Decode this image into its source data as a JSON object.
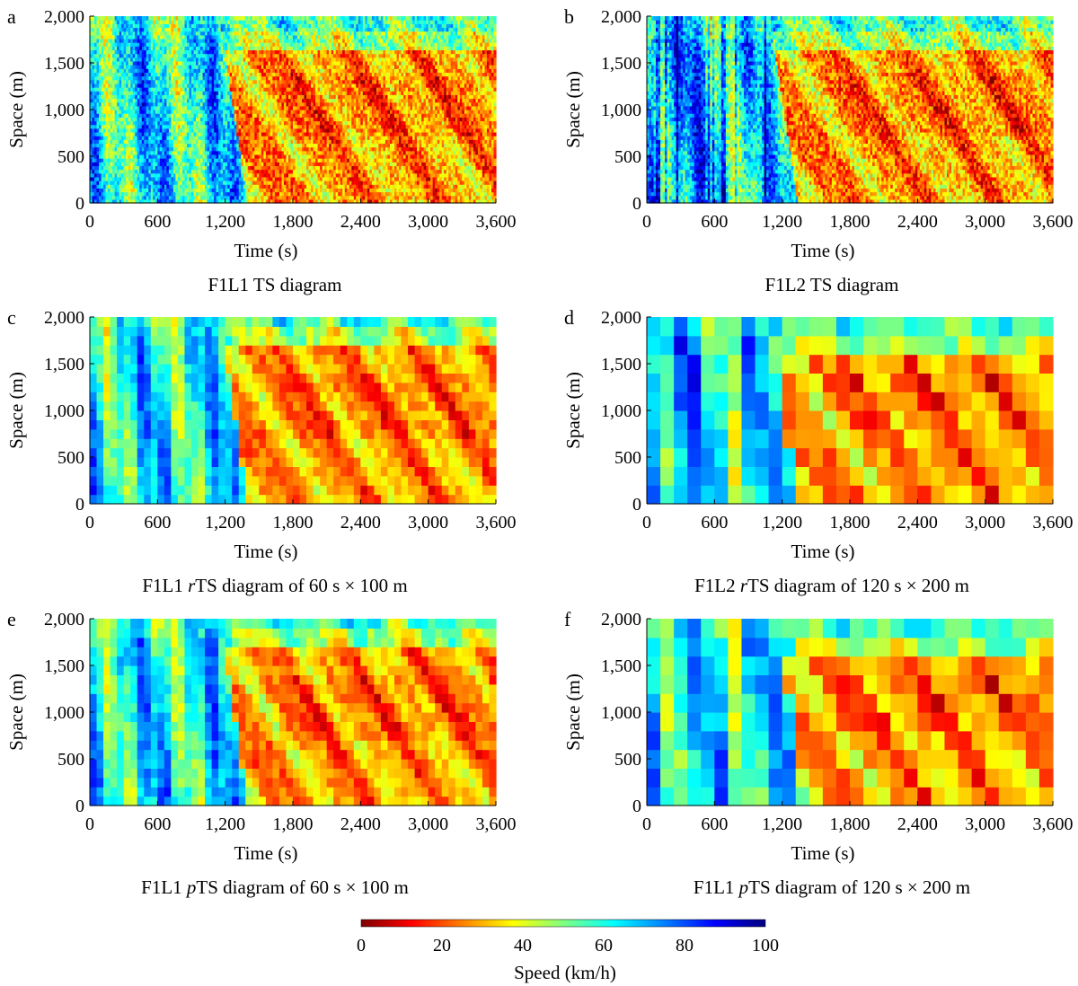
{
  "chart_data": [
    {
      "type": "heatmap",
      "letter": "a",
      "title_parts": [
        {
          "t": "F1L1 TS diagram",
          "i": false
        }
      ],
      "xlabel": "Time (s)",
      "ylabel": "Space (m)",
      "xlim": [
        0,
        3600
      ],
      "ylim": [
        0,
        2000
      ],
      "xticks": [
        0,
        600,
        1200,
        1800,
        2400,
        3000,
        3600
      ],
      "xtick_labels": [
        "0",
        "600",
        "1,200",
        "1,800",
        "2,400",
        "3,000",
        "3,600"
      ],
      "yticks": [
        0,
        500,
        1000,
        1500,
        2000
      ],
      "ytick_labels": [
        "0",
        "500",
        "1,000",
        "1,500",
        "2,000"
      ],
      "grid": false,
      "lane": 1,
      "cell_time_s": 0,
      "cell_space_m": 0
    },
    {
      "type": "heatmap",
      "letter": "b",
      "title_parts": [
        {
          "t": "F1L2 TS diagram",
          "i": false
        }
      ],
      "xlabel": "Time (s)",
      "ylabel": "Space (m)",
      "xlim": [
        0,
        3600
      ],
      "ylim": [
        0,
        2000
      ],
      "xticks": [
        0,
        600,
        1200,
        1800,
        2400,
        3000,
        3600
      ],
      "xtick_labels": [
        "0",
        "600",
        "1,200",
        "1,800",
        "2,400",
        "3,000",
        "3,600"
      ],
      "yticks": [
        0,
        500,
        1000,
        1500,
        2000
      ],
      "ytick_labels": [
        "0",
        "500",
        "1,000",
        "1,500",
        "2,000"
      ],
      "grid": false,
      "lane": 2,
      "cell_time_s": 0,
      "cell_space_m": 0
    },
    {
      "type": "heatmap",
      "letter": "c",
      "title_parts": [
        {
          "t": "F1L1 ",
          "i": false
        },
        {
          "t": "r",
          "i": true
        },
        {
          "t": "TS diagram of 60 s × 100 m",
          "i": false
        }
      ],
      "xlabel": "Time (s)",
      "ylabel": "Space (m)",
      "xlim": [
        0,
        3600
      ],
      "ylim": [
        0,
        2000
      ],
      "xticks": [
        0,
        600,
        1200,
        1800,
        2400,
        3000,
        3600
      ],
      "xtick_labels": [
        "0",
        "600",
        "1,200",
        "1,800",
        "2,400",
        "3,000",
        "3,600"
      ],
      "yticks": [
        0,
        500,
        1000,
        1500,
        2000
      ],
      "ytick_labels": [
        "0",
        "500",
        "1,000",
        "1,500",
        "2,000"
      ],
      "grid": false,
      "lane": 1,
      "cell_time_s": 60,
      "cell_space_m": 100
    },
    {
      "type": "heatmap",
      "letter": "d",
      "title_parts": [
        {
          "t": "F1L2 ",
          "i": false
        },
        {
          "t": "r",
          "i": true
        },
        {
          "t": "TS diagram of 120 s × 200 m",
          "i": false
        }
      ],
      "xlabel": "Time (s)",
      "ylabel": "Space (m)",
      "xlim": [
        0,
        3600
      ],
      "ylim": [
        0,
        2000
      ],
      "xticks": [
        0,
        600,
        1200,
        1800,
        2400,
        3000,
        3600
      ],
      "xtick_labels": [
        "0",
        "600",
        "1,200",
        "1,800",
        "2,400",
        "3,000",
        "3,600"
      ],
      "yticks": [
        0,
        500,
        1000,
        1500,
        2000
      ],
      "ytick_labels": [
        "0",
        "500",
        "1,000",
        "1,500",
        "2,000"
      ],
      "grid": false,
      "lane": 2,
      "cell_time_s": 120,
      "cell_space_m": 200
    },
    {
      "type": "heatmap",
      "letter": "e",
      "title_parts": [
        {
          "t": "F1L1 ",
          "i": false
        },
        {
          "t": "p",
          "i": true
        },
        {
          "t": "TS diagram of 60 s × 100 m",
          "i": false
        }
      ],
      "xlabel": "Time (s)",
      "ylabel": "Space (m)",
      "xlim": [
        0,
        3600
      ],
      "ylim": [
        0,
        2000
      ],
      "xticks": [
        0,
        600,
        1200,
        1800,
        2400,
        3000,
        3600
      ],
      "xtick_labels": [
        "0",
        "600",
        "1,200",
        "1,800",
        "2,400",
        "3,000",
        "3,600"
      ],
      "yticks": [
        0,
        500,
        1000,
        1500,
        2000
      ],
      "ytick_labels": [
        "0",
        "500",
        "1,000",
        "1,500",
        "2,000"
      ],
      "grid": false,
      "lane": 1,
      "cell_time_s": 60,
      "cell_space_m": 100
    },
    {
      "type": "heatmap",
      "letter": "f",
      "title_parts": [
        {
          "t": "F1L1 ",
          "i": false
        },
        {
          "t": "p",
          "i": true
        },
        {
          "t": "TS diagram of 120 s × 200 m",
          "i": false
        }
      ],
      "xlabel": "Time (s)",
      "ylabel": "Space (m)",
      "xlim": [
        0,
        3600
      ],
      "ylim": [
        0,
        2000
      ],
      "xticks": [
        0,
        600,
        1200,
        1800,
        2400,
        3000,
        3600
      ],
      "xtick_labels": [
        "0",
        "600",
        "1,200",
        "1,800",
        "2,400",
        "3,000",
        "3,600"
      ],
      "yticks": [
        0,
        500,
        1000,
        1500,
        2000
      ],
      "ytick_labels": [
        "0",
        "500",
        "1,000",
        "1,500",
        "2,000"
      ],
      "grid": false,
      "lane": 1,
      "cell_time_s": 120,
      "cell_space_m": 200
    }
  ],
  "colorbar": {
    "label": "Speed (km/h)",
    "range": [
      0,
      100
    ],
    "ticks": [
      0,
      20,
      40,
      60,
      80,
      100
    ],
    "colormap": "jet-reversed",
    "stops": [
      "#7f0000",
      "#ff0000",
      "#ff8000",
      "#ffff00",
      "#80ff80",
      "#00ffff",
      "#0080ff",
      "#0000ff",
      "#00007f"
    ]
  }
}
